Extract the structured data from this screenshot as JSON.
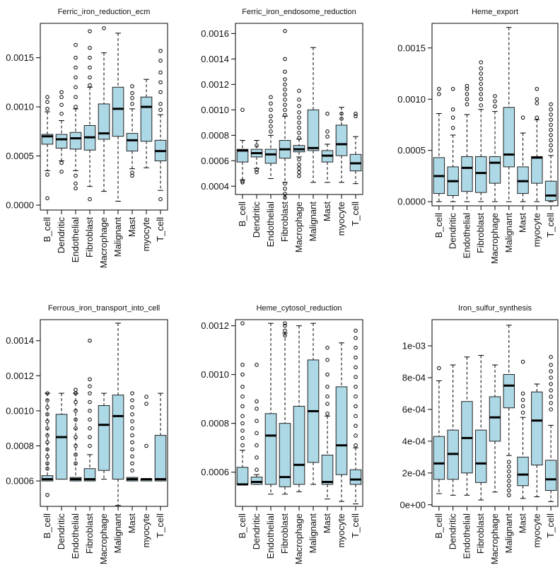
{
  "chart_data": [
    {
      "type": "boxplot",
      "title": "Ferric_iron_reduction_ecm",
      "categories": [
        "B_cell",
        "Dendritic",
        "Endothelial",
        "Fibroblast",
        "Macrophage",
        "Malignant",
        "Mast",
        "myocyte",
        "T_cell"
      ],
      "ylim": [
        -5e-05,
        0.00185
      ],
      "ticks": [
        0,
        0.0005,
        0.001,
        0.0015
      ],
      "tick_labels": [
        "0.0000",
        "0.0005",
        "0.0010",
        "0.0015"
      ],
      "boxes": [
        {
          "q1": 0.00062,
          "median": 0.0007,
          "q3": 0.00072,
          "lo": 0.00035,
          "hi": 0.00095,
          "outliers": [
            7e-05,
            0.00031,
            0.00098,
            0.00105,
            0.0011
          ]
        },
        {
          "q1": 0.00058,
          "median": 0.00067,
          "q3": 0.00072,
          "lo": 0.00045,
          "hi": 0.00086,
          "outliers": [
            0.00034,
            0.00043,
            0.00093,
            0.00102,
            0.0011,
            0.00115
          ]
        },
        {
          "q1": 0.00057,
          "median": 0.00068,
          "q3": 0.00074,
          "lo": 0.00035,
          "hi": 0.00098,
          "outliers": [
            0.00017,
            0.00022,
            0.0003,
            0.001,
            0.0011,
            0.0012,
            0.0013,
            0.0014,
            0.0015,
            0.00163
          ]
        },
        {
          "q1": 0.00056,
          "median": 0.00069,
          "q3": 0.00081,
          "lo": 0.00019,
          "hi": 0.0012,
          "outliers": [
            6e-05,
            0.00122,
            0.0013,
            0.0014,
            0.0015,
            0.0016,
            0.00177
          ]
        },
        {
          "q1": 0.00067,
          "median": 0.00073,
          "q3": 0.00103,
          "lo": 0.00014,
          "hi": 0.00155,
          "outliers": [
            0.0018
          ]
        },
        {
          "q1": 0.0007,
          "median": 0.00098,
          "q3": 0.0012,
          "lo": 4e-05,
          "hi": 0.00175,
          "outliers": []
        },
        {
          "q1": 0.00055,
          "median": 0.00066,
          "q3": 0.00073,
          "lo": 0.00037,
          "hi": 0.00098,
          "outliers": [
            0.0003,
            0.00033,
            0.00103,
            0.00109,
            0.00114,
            0.00121
          ]
        },
        {
          "q1": 0.00065,
          "median": 0.001,
          "q3": 0.0011,
          "lo": 0.00038,
          "hi": 0.00128,
          "outliers": []
        },
        {
          "q1": 0.00045,
          "median": 0.00055,
          "q3": 0.00066,
          "lo": 0.00015,
          "hi": 0.00092,
          "outliers": [
            6e-05,
            0.00097,
            0.00103,
            0.00115,
            0.00125,
            0.00135,
            0.00147,
            0.00157
          ]
        }
      ]
    },
    {
      "type": "boxplot",
      "title": "Ferric_iron_endosome_reduction",
      "categories": [
        "B_cell",
        "Dendritic",
        "Endothelial",
        "Fibroblast",
        "Macrophage",
        "Malignant",
        "Mast",
        "myocyte",
        "T_cell"
      ],
      "ylim": [
        0.000335,
        0.00168
      ],
      "ticks": [
        0.0004,
        0.0006,
        0.0008,
        0.001,
        0.0012,
        0.0014,
        0.0016
      ],
      "tick_labels": [
        "0.0004",
        "0.0006",
        "0.0008",
        "0.0010",
        "0.0012",
        "0.0014",
        "0.0016"
      ],
      "boxes": [
        {
          "q1": 0.00059,
          "median": 0.00068,
          "q3": 0.00069,
          "lo": 0.00045,
          "hi": 0.00076,
          "outliers": [
            0.00043,
            0.00044,
            0.001
          ]
        },
        {
          "q1": 0.00063,
          "median": 0.00066,
          "q3": 0.00069,
          "lo": 0.00054,
          "hi": 0.00076,
          "outliers": [
            0.00051,
            0.00053,
            0.00072
          ]
        },
        {
          "q1": 0.00058,
          "median": 0.00065,
          "q3": 0.00069,
          "lo": 0.00046,
          "hi": 0.0008,
          "outliers": [
            0.00083,
            0.00087,
            0.00091,
            0.00095,
            0.001,
            0.00105,
            0.0011
          ]
        },
        {
          "q1": 0.00062,
          "median": 0.00069,
          "q3": 0.00076,
          "lo": 0.00043,
          "hi": 0.00095,
          "outliers": [
            0.00031,
            0.00034,
            0.00038,
            0.00042,
            0.00096,
            0.001,
            0.00104,
            0.00108,
            0.00112,
            0.00116,
            0.0012,
            0.00124,
            0.0013,
            0.0014,
            0.00162
          ]
        },
        {
          "q1": 0.00067,
          "median": 0.00069,
          "q3": 0.00072,
          "lo": 0.00063,
          "hi": 0.00077,
          "outliers": [
            0.00048,
            0.00051,
            0.00054,
            0.00057,
            0.00061,
            0.00078,
            0.00082,
            0.00086,
            0.0009,
            0.00094,
            0.00098,
            0.00103,
            0.00108,
            0.00115
          ]
        },
        {
          "q1": 0.00068,
          "median": 0.0007,
          "q3": 0.001,
          "lo": 0.00043,
          "hi": 0.00149,
          "outliers": []
        },
        {
          "q1": 0.00059,
          "median": 0.00064,
          "q3": 0.00068,
          "lo": 0.00043,
          "hi": 0.00073,
          "outliers": [
            0.00079,
            0.00083,
            0.00097
          ]
        },
        {
          "q1": 0.00064,
          "median": 0.00073,
          "q3": 0.00088,
          "lo": 0.00043,
          "hi": 0.00102,
          "outliers": [
            0.00093,
            0.00097
          ]
        },
        {
          "q1": 0.00052,
          "median": 0.00058,
          "q3": 0.00065,
          "lo": 0.00042,
          "hi": 0.00079,
          "outliers": [
            0.00095,
            0.00097
          ]
        }
      ]
    },
    {
      "type": "boxplot",
      "title": "Heme_export",
      "categories": [
        "B_cell",
        "Dendritic",
        "Endothelial",
        "Fibroblast",
        "Macrophage",
        "Malignant",
        "Mast",
        "myocyte",
        "T_cell"
      ],
      "ylim": [
        -4e-05,
        0.00174
      ],
      "ticks": [
        0,
        0.0005,
        0.001,
        0.0015
      ],
      "tick_labels": [
        "0.0000",
        "0.0005",
        "0.0010",
        "0.0015"
      ],
      "boxes": [
        {
          "q1": 8e-05,
          "median": 0.00025,
          "q3": 0.00043,
          "lo": 0.0,
          "hi": 0.00086,
          "outliers": [
            0.00105,
            0.0011
          ]
        },
        {
          "q1": 6e-05,
          "median": 0.0002,
          "q3": 0.00034,
          "lo": 0.0,
          "hi": 0.00065,
          "outliers": [
            0.00072,
            0.00082,
            0.0009,
            0.0011
          ]
        },
        {
          "q1": 0.0001,
          "median": 0.00033,
          "q3": 0.00044,
          "lo": 0.0,
          "hi": 0.00085,
          "outliers": [
            0.00095,
            0.001,
            0.00105,
            0.0011,
            0.00113
          ]
        },
        {
          "q1": 9e-05,
          "median": 0.00028,
          "q3": 0.00044,
          "lo": 0.0,
          "hi": 0.0009,
          "outliers": [
            0.00094,
            0.001,
            0.00105,
            0.0011,
            0.00115,
            0.0012,
            0.00125,
            0.0013,
            0.00136
          ]
        },
        {
          "q1": 0.00018,
          "median": 0.00038,
          "q3": 0.00044,
          "lo": 0.0,
          "hi": 0.00088,
          "outliers": [
            0.00093,
            0.00098,
            0.00103
          ]
        },
        {
          "q1": 0.00034,
          "median": 0.00046,
          "q3": 0.00092,
          "lo": 0.0,
          "hi": 0.0017,
          "outliers": []
        },
        {
          "q1": 8e-05,
          "median": 0.0002,
          "q3": 0.00034,
          "lo": 0.0,
          "hi": 0.00067,
          "outliers": [
            0.00082
          ]
        },
        {
          "q1": 0.00018,
          "median": 0.00043,
          "q3": 0.00044,
          "lo": 0.0,
          "hi": 0.0008,
          "outliers": [
            0.00082,
            0.00096,
            0.001,
            0.0011
          ]
        },
        {
          "q1": 1e-05,
          "median": 6e-05,
          "q3": 0.0002,
          "lo": 0.0,
          "hi": 0.00045,
          "outliers": [
            0.0005,
            0.00055,
            0.0006,
            0.00065,
            0.0007,
            0.00075,
            0.0008,
            0.00085,
            0.0009,
            0.00095
          ]
        }
      ]
    },
    {
      "type": "boxplot",
      "title": "Ferrous_iron_transport_into_cell",
      "categories": [
        "B_cell",
        "Dendritic",
        "Endothelial",
        "Fibroblast",
        "Macrophage",
        "Malignant",
        "Mast",
        "myocyte",
        "T_cell"
      ],
      "ylim": [
        0.000455,
        0.00152
      ],
      "ticks": [
        0.0006,
        0.0008,
        0.001,
        0.0012,
        0.0014
      ],
      "tick_labels": [
        "0.0006",
        "0.0008",
        "0.0010",
        "0.0012",
        "0.0014"
      ],
      "boxes": [
        {
          "q1": 0.0006,
          "median": 0.00061,
          "q3": 0.00063,
          "lo": 0.0006,
          "hi": 0.0011,
          "outliers": [
            0.00052,
            0.00067,
            0.0007,
            0.00074,
            0.00078,
            0.00082,
            0.00086,
            0.0009,
            0.00094,
            0.00098,
            0.00102,
            0.00106,
            0.0011
          ]
        },
        {
          "q1": 0.00061,
          "median": 0.00085,
          "q3": 0.00098,
          "lo": 0.00061,
          "hi": 0.0011,
          "outliers": []
        },
        {
          "q1": 0.0006,
          "median": 0.00061,
          "q3": 0.00062,
          "lo": 0.0006,
          "hi": 0.0011,
          "outliers": [
            0.0007,
            0.00075,
            0.0008,
            0.00085,
            0.0009,
            0.00095,
            0.001,
            0.00105,
            0.0011,
            0.00112
          ]
        },
        {
          "q1": 0.0006,
          "median": 0.00061,
          "q3": 0.00067,
          "lo": 0.0006,
          "hi": 0.00075,
          "outliers": [
            0.0008,
            0.00085,
            0.0009,
            0.00095,
            0.001,
            0.00105,
            0.0011,
            0.00114,
            0.00118,
            0.0014
          ]
        },
        {
          "q1": 0.00066,
          "median": 0.00092,
          "q3": 0.00103,
          "lo": 0.00061,
          "hi": 0.0011,
          "outliers": []
        },
        {
          "q1": 0.00061,
          "median": 0.00097,
          "q3": 0.00109,
          "lo": 0.00046,
          "hi": 0.0015,
          "outliers": []
        },
        {
          "q1": 0.0006,
          "median": 0.00061,
          "q3": 0.00062,
          "lo": 0.0006,
          "hi": 0.00062,
          "outliers": [
            0.00066,
            0.0007,
            0.00074,
            0.00078,
            0.00082,
            0.00086,
            0.0009,
            0.00094,
            0.00098,
            0.00102,
            0.00106,
            0.0011
          ]
        },
        {
          "q1": 0.0006,
          "median": 0.00061,
          "q3": 0.00061,
          "lo": 0.0006,
          "hi": 0.00061,
          "outliers": [
            0.0008,
            0.00104,
            0.00108
          ]
        },
        {
          "q1": 0.0006,
          "median": 0.00061,
          "q3": 0.00086,
          "lo": 0.0006,
          "hi": 0.0011,
          "outliers": []
        }
      ]
    },
    {
      "type": "boxplot",
      "title": "Heme_cytosol_reduction",
      "categories": [
        "B_cell",
        "Dendritic",
        "Endothelial",
        "Fibroblast",
        "Macrophage",
        "Malignant",
        "Mast",
        "myocyte",
        "T_cell"
      ],
      "ylim": [
        0.00046,
        0.001225
      ],
      "ticks": [
        0.0006,
        0.0008,
        0.001,
        0.0012
      ],
      "tick_labels": [
        "0.0006",
        "0.0008",
        "0.0010",
        "0.0012"
      ],
      "boxes": [
        {
          "q1": 0.00055,
          "median": 0.00055,
          "q3": 0.00062,
          "lo": 0.00055,
          "hi": 0.00069,
          "outliers": [
            0.00071,
            0.00074,
            0.00077,
            0.0008,
            0.00083,
            0.00087,
            0.00091,
            0.00095,
            0.001,
            0.00104,
            0.00121
          ]
        },
        {
          "q1": 0.00055,
          "median": 0.00056,
          "q3": 0.00058,
          "lo": 0.00055,
          "hi": 0.00059,
          "outliers": [
            0.00061,
            0.00066,
            0.00071,
            0.00076,
            0.00081,
            0.00086,
            0.00089,
            0.00104
          ]
        },
        {
          "q1": 0.00055,
          "median": 0.00075,
          "q3": 0.00084,
          "lo": 0.00051,
          "hi": 0.00121,
          "outliers": []
        },
        {
          "q1": 0.00054,
          "median": 0.00058,
          "q3": 0.0008,
          "lo": 0.00051,
          "hi": 0.00117,
          "outliers": [
            0.00116,
            0.00118,
            0.0012,
            0.00121
          ]
        },
        {
          "q1": 0.00055,
          "median": 0.00063,
          "q3": 0.00087,
          "lo": 0.00052,
          "hi": 0.0012,
          "outliers": []
        },
        {
          "q1": 0.00064,
          "median": 0.00085,
          "q3": 0.00106,
          "lo": 0.00055,
          "hi": 0.00121,
          "outliers": []
        },
        {
          "q1": 0.00055,
          "median": 0.00056,
          "q3": 0.00067,
          "lo": 0.00049,
          "hi": 0.00083,
          "outliers": [
            0.00084,
            0.00088,
            0.00091,
            0.00095,
            0.001,
            0.00106,
            0.00111
          ]
        },
        {
          "q1": 0.00059,
          "median": 0.00071,
          "q3": 0.00095,
          "lo": 0.00048,
          "hi": 0.00113,
          "outliers": []
        },
        {
          "q1": 0.00055,
          "median": 0.00057,
          "q3": 0.00061,
          "lo": 0.00047,
          "hi": 0.0007,
          "outliers": [
            0.00071,
            0.00075,
            0.00079,
            0.00083,
            0.00087,
            0.00091,
            0.00095,
            0.00099,
            0.00103,
            0.00107,
            0.00111,
            0.00115,
            0.00118
          ]
        }
      ]
    },
    {
      "type": "boxplot",
      "title": "Iron_sulfur_synthesis",
      "categories": [
        "B_cell",
        "Dendritic",
        "Endothelial",
        "Fibroblast",
        "Macrophage",
        "Malignant",
        "Mast",
        "myocyte",
        "T_cell"
      ],
      "ylim": [
        -1e-05,
        0.001165
      ],
      "ticks": [
        0,
        0.0002,
        0.0004,
        0.0006,
        0.0008,
        0.001
      ],
      "tick_labels": [
        "0e+00",
        "2e-04",
        "4e-04",
        "6e-04",
        "8e-04",
        "1e-03"
      ],
      "boxes": [
        {
          "q1": 0.00016,
          "median": 0.00026,
          "q3": 0.00043,
          "lo": 7e-05,
          "hi": 0.00078,
          "outliers": [
            0.00086
          ]
        },
        {
          "q1": 0.00016,
          "median": 0.00032,
          "q3": 0.00047,
          "lo": 6e-05,
          "hi": 0.00088,
          "outliers": []
        },
        {
          "q1": 0.0002,
          "median": 0.00042,
          "q3": 0.00065,
          "lo": 6e-05,
          "hi": 0.00093,
          "outliers": []
        },
        {
          "q1": 0.00014,
          "median": 0.00026,
          "q3": 0.00047,
          "lo": 3e-05,
          "hi": 0.00094,
          "outliers": []
        },
        {
          "q1": 0.0004,
          "median": 0.00055,
          "q3": 0.00068,
          "lo": 8e-05,
          "hi": 0.00088,
          "outliers": []
        },
        {
          "q1": 0.00061,
          "median": 0.00075,
          "q3": 0.00082,
          "lo": 0.00031,
          "hi": 0.00113,
          "outliers": [
            6e-05,
            9e-05,
            0.00012,
            0.00015,
            0.00018,
            0.00021,
            0.00024,
            0.00027
          ]
        },
        {
          "q1": 0.00012,
          "median": 0.00019,
          "q3": 0.0003,
          "lo": 4e-05,
          "hi": 0.00055,
          "outliers": [
            0.00058,
            0.00062,
            0.00066,
            0.0007,
            0.0009
          ]
        },
        {
          "q1": 0.00025,
          "median": 0.00053,
          "q3": 0.00071,
          "lo": 5e-05,
          "hi": 0.00076,
          "outliers": []
        },
        {
          "q1": 9e-05,
          "median": 0.00016,
          "q3": 0.00028,
          "lo": 2e-05,
          "hi": 0.0005,
          "outliers": [
            0.0006,
            0.00064,
            0.00068,
            0.00072,
            0.00076,
            0.0008,
            0.00084,
            0.00088,
            0.00093
          ]
        }
      ]
    }
  ]
}
